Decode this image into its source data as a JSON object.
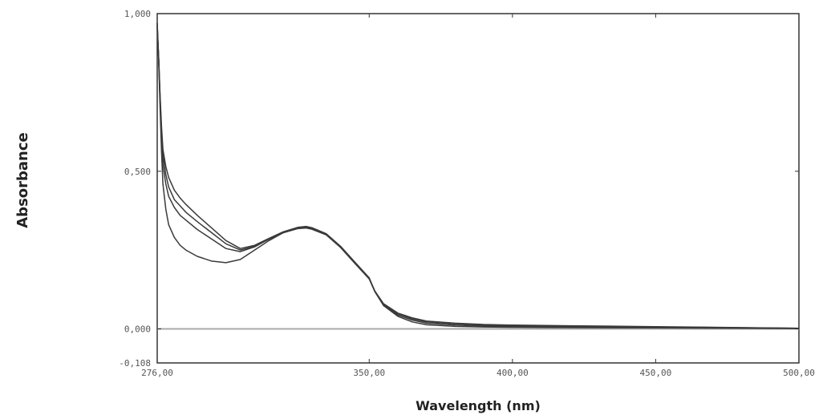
{
  "chart_data": {
    "type": "line",
    "xlabel": "Wavelength (nm)",
    "ylabel": "Absorbance",
    "xlim": [
      276.0,
      500.0
    ],
    "ylim": [
      -0.108,
      1.0
    ],
    "x_ticks": [
      {
        "value": 276.0,
        "label": "276,00"
      },
      {
        "value": 350.0,
        "label": "350,00"
      },
      {
        "value": 400.0,
        "label": "400,00"
      },
      {
        "value": 450.0,
        "label": "450,00"
      },
      {
        "value": 500.0,
        "label": "500,00"
      }
    ],
    "y_ticks": [
      {
        "value": 1.0,
        "label": "1,000"
      },
      {
        "value": 0.5,
        "label": "0,500"
      },
      {
        "value": 0.0,
        "label": "0,000"
      },
      {
        "value": -0.108,
        "label": "-0,108"
      }
    ],
    "baseline": 0.0,
    "grid": false,
    "line_color": "#3a3a3a",
    "baseline_color": "#aaaaaa",
    "series": [
      {
        "x": [
          276,
          276.5,
          277,
          277.5,
          278,
          279,
          280,
          282,
          284,
          286,
          290,
          295,
          300,
          305,
          310,
          315,
          320,
          325,
          328,
          330,
          335,
          340,
          345,
          350,
          352,
          355,
          360,
          365,
          370,
          380,
          390,
          400,
          420,
          450,
          500
        ],
        "y": [
          0.97,
          0.85,
          0.7,
          0.56,
          0.46,
          0.38,
          0.33,
          0.29,
          0.265,
          0.25,
          0.23,
          0.215,
          0.21,
          0.22,
          0.25,
          0.28,
          0.305,
          0.32,
          0.322,
          0.318,
          0.3,
          0.26,
          0.21,
          0.16,
          0.12,
          0.08,
          0.05,
          0.035,
          0.025,
          0.018,
          0.014,
          0.012,
          0.01,
          0.007,
          0.002
        ]
      },
      {
        "x": [
          276,
          276.5,
          277,
          277.5,
          278,
          279,
          280,
          282,
          284,
          286,
          290,
          295,
          300,
          305,
          310,
          315,
          320,
          325,
          328,
          330,
          335,
          340,
          345,
          350,
          352,
          355,
          360,
          365,
          370,
          380,
          390,
          400,
          420,
          450,
          500
        ],
        "y": [
          0.97,
          0.86,
          0.72,
          0.6,
          0.52,
          0.46,
          0.42,
          0.385,
          0.36,
          0.345,
          0.315,
          0.285,
          0.255,
          0.245,
          0.26,
          0.285,
          0.305,
          0.318,
          0.32,
          0.316,
          0.298,
          0.258,
          0.208,
          0.158,
          0.118,
          0.078,
          0.048,
          0.032,
          0.022,
          0.016,
          0.012,
          0.01,
          0.008,
          0.006,
          0.002
        ]
      },
      {
        "x": [
          276,
          276.5,
          277,
          277.5,
          278,
          279,
          280,
          282,
          284,
          286,
          290,
          295,
          300,
          305,
          310,
          315,
          320,
          325,
          328,
          330,
          335,
          340,
          345,
          350,
          352,
          355,
          360,
          365,
          370,
          380,
          390,
          400,
          420,
          450,
          500
        ],
        "y": [
          0.96,
          0.86,
          0.73,
          0.62,
          0.55,
          0.49,
          0.45,
          0.41,
          0.39,
          0.37,
          0.34,
          0.305,
          0.27,
          0.25,
          0.262,
          0.285,
          0.306,
          0.32,
          0.323,
          0.319,
          0.3,
          0.26,
          0.21,
          0.16,
          0.118,
          0.076,
          0.044,
          0.028,
          0.018,
          0.012,
          0.009,
          0.008,
          0.007,
          0.005,
          0.002
        ]
      },
      {
        "x": [
          276,
          276.5,
          277,
          277.5,
          278,
          279,
          280,
          282,
          284,
          286,
          290,
          295,
          300,
          305,
          310,
          315,
          320,
          325,
          328,
          330,
          335,
          340,
          345,
          350,
          352,
          355,
          360,
          365,
          370,
          380,
          390,
          400,
          420,
          450,
          500
        ],
        "y": [
          0.95,
          0.86,
          0.74,
          0.64,
          0.57,
          0.515,
          0.48,
          0.44,
          0.415,
          0.395,
          0.36,
          0.32,
          0.28,
          0.255,
          0.265,
          0.287,
          0.308,
          0.322,
          0.325,
          0.321,
          0.302,
          0.262,
          0.212,
          0.162,
          0.118,
          0.074,
          0.04,
          0.022,
          0.013,
          0.008,
          0.006,
          0.005,
          0.004,
          0.003,
          0.001
        ]
      }
    ]
  }
}
